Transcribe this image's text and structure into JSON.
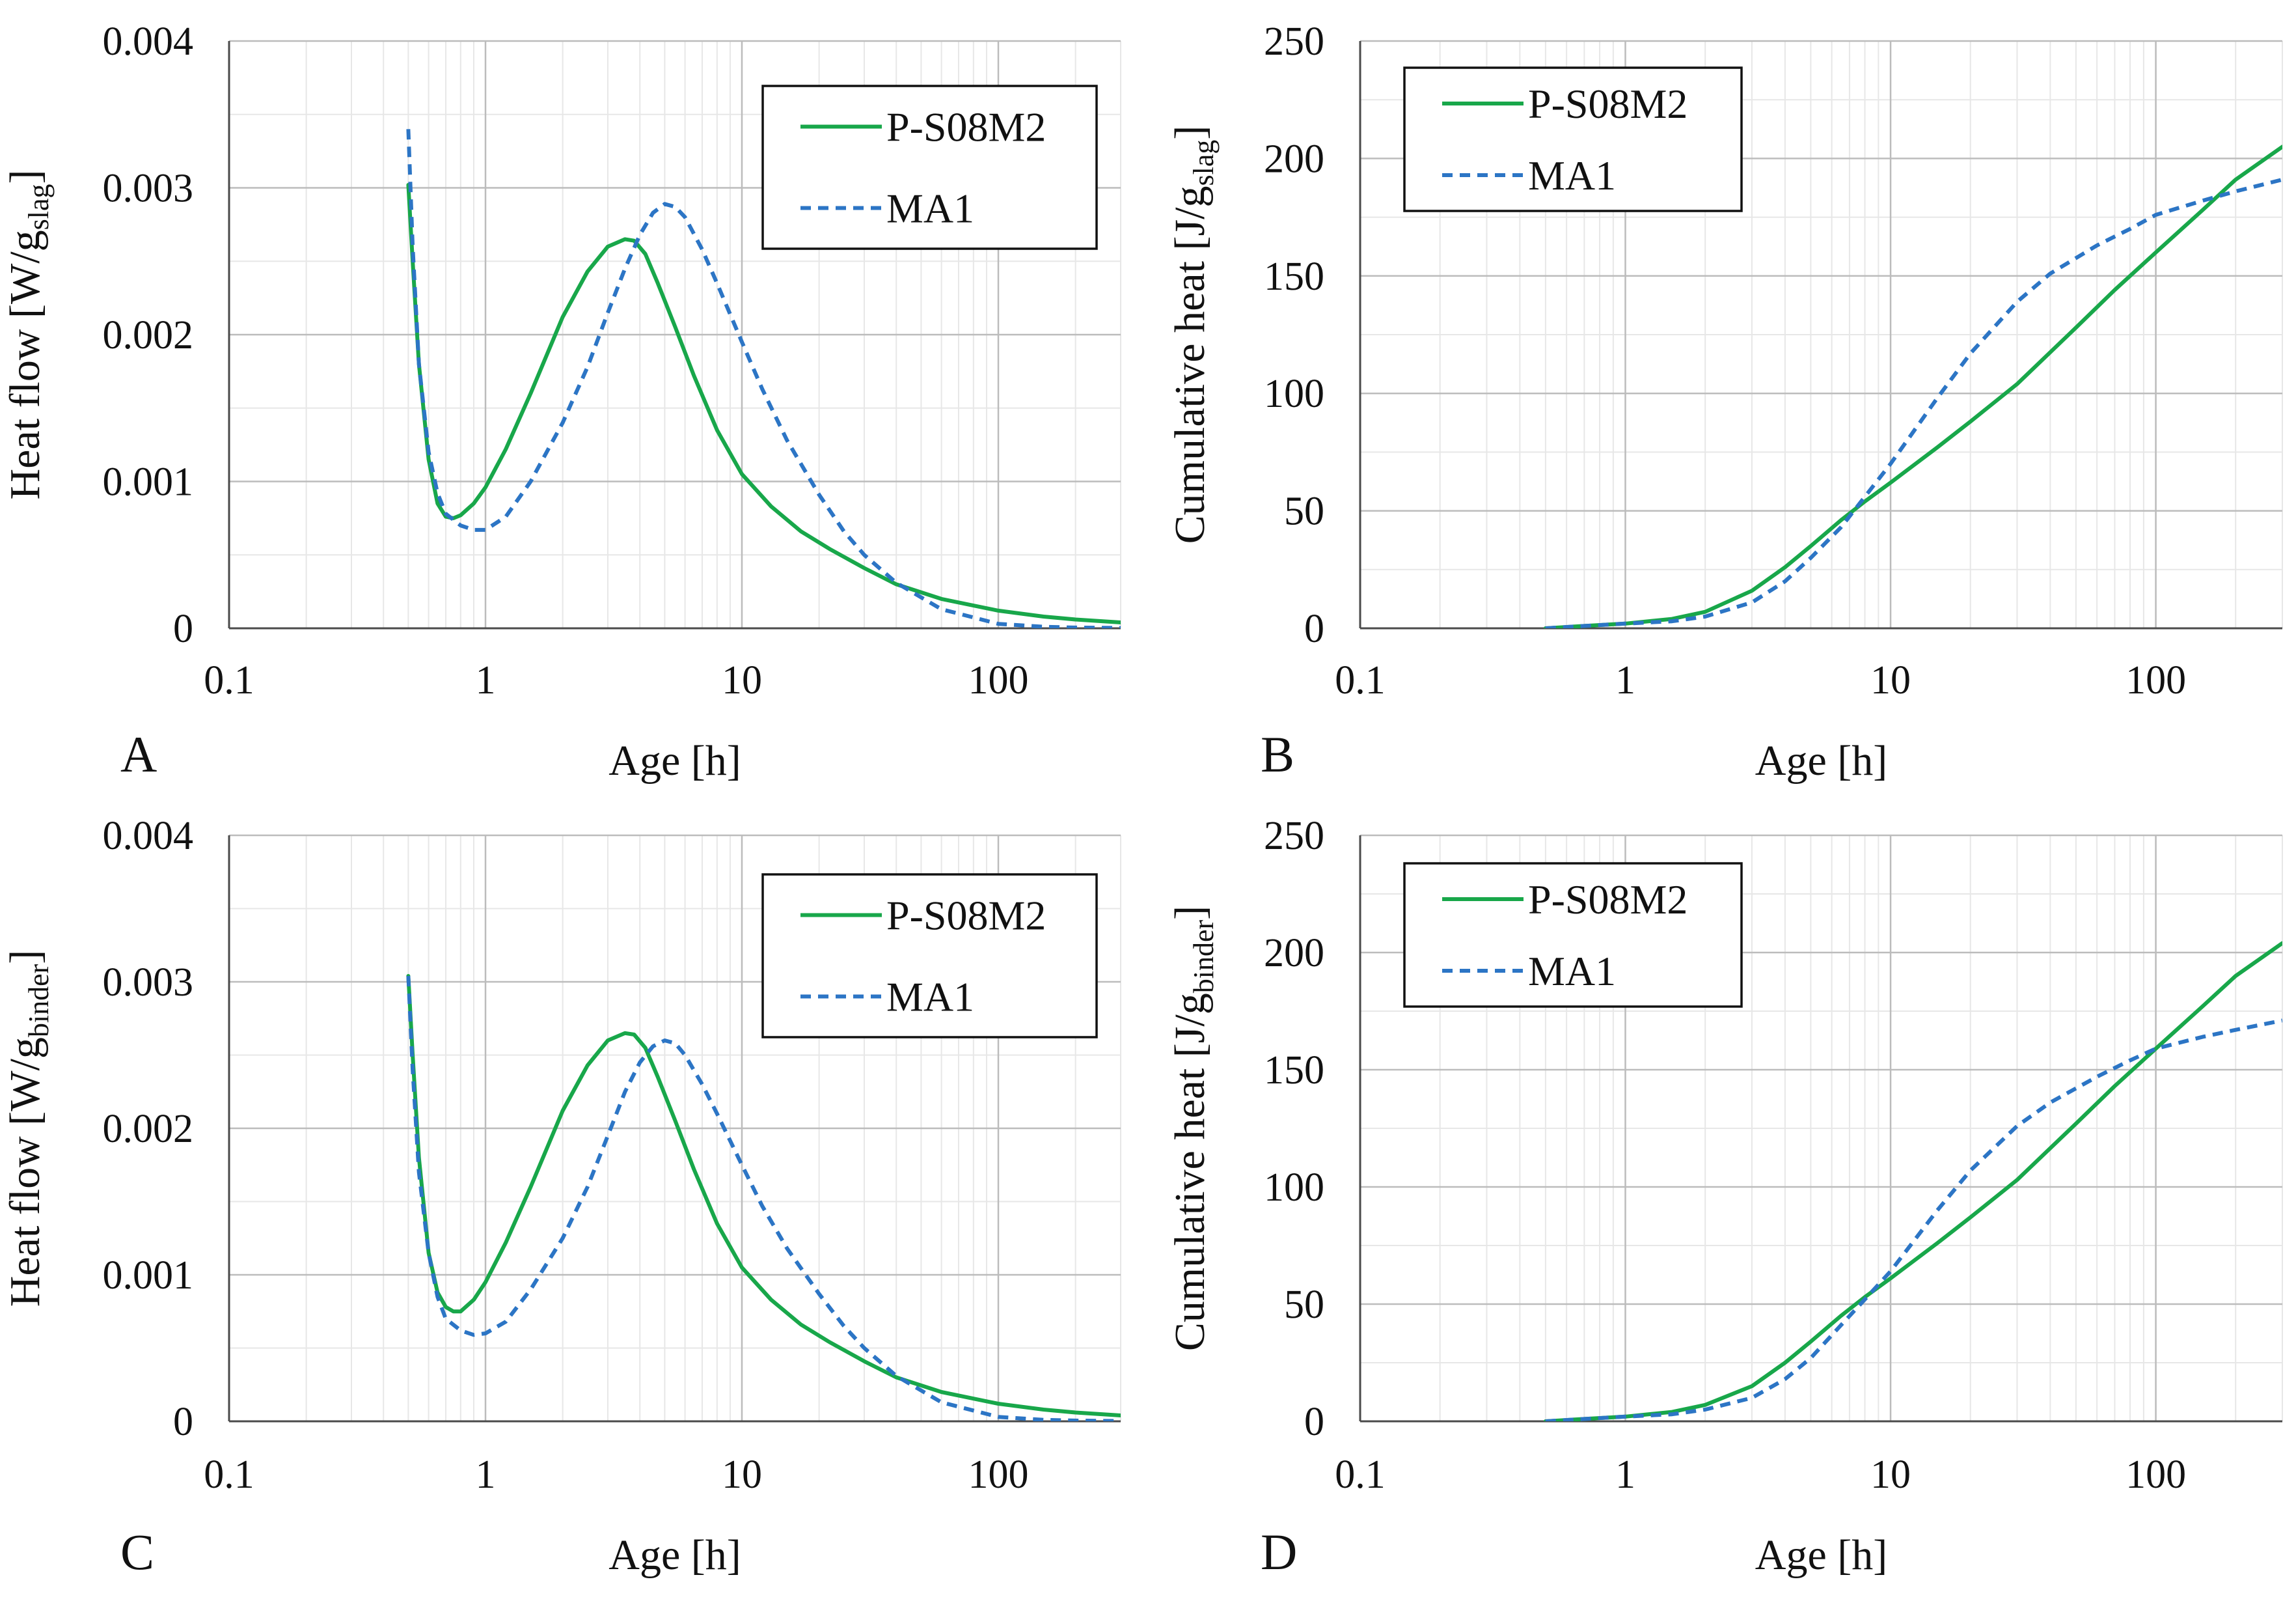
{
  "colors": {
    "series_p": "#18a74a",
    "series_ma": "#2c75c5",
    "axis": "#4a4a4a",
    "grid_major": "#bcbcbc",
    "grid_minor": "#e7e7e7",
    "legend_border": "#111111"
  },
  "chart_data": [
    {
      "panel": "A",
      "type": "line",
      "xscale": "log",
      "xlabel": "Age [h]",
      "ylabel": "Heat flow [W/g",
      "ylabel_sub": "slag",
      "ylabel_end": "]",
      "xlim": [
        0.1,
        300
      ],
      "ylim": [
        0,
        0.004
      ],
      "xticks": [
        0.1,
        1,
        10,
        100
      ],
      "xtick_labels": [
        "0.1",
        "1",
        "10",
        "100"
      ],
      "yticks": [
        0,
        0.001,
        0.002,
        0.003,
        0.004
      ],
      "ytick_labels": [
        "0",
        "0.001",
        "0.002",
        "0.003",
        "0.004"
      ],
      "legend_position": "top-right",
      "series": [
        {
          "name": "P-S08M2",
          "style": "solid",
          "x": [
            0.5,
            0.52,
            0.55,
            0.6,
            0.65,
            0.7,
            0.75,
            0.8,
            0.9,
            1.0,
            1.2,
            1.5,
            2.0,
            2.5,
            3.0,
            3.5,
            3.8,
            4.2,
            4.7,
            5.5,
            6.5,
            8,
            10,
            13,
            17,
            22,
            30,
            40,
            60,
            100,
            150,
            200,
            300
          ],
          "y": [
            0.00302,
            0.0025,
            0.0018,
            0.00115,
            0.00085,
            0.00076,
            0.00075,
            0.00077,
            0.00085,
            0.00096,
            0.00122,
            0.0016,
            0.00212,
            0.00243,
            0.0026,
            0.00265,
            0.00264,
            0.00255,
            0.00235,
            0.00205,
            0.00172,
            0.00135,
            0.00105,
            0.00083,
            0.00066,
            0.00054,
            0.00041,
            0.0003,
            0.0002,
            0.00012,
            8e-05,
            6e-05,
            4e-05
          ]
        },
        {
          "name": "MA1",
          "style": "dashed",
          "x": [
            0.5,
            0.52,
            0.55,
            0.6,
            0.65,
            0.7,
            0.8,
            0.9,
            1.0,
            1.2,
            1.5,
            2.0,
            2.5,
            3.0,
            3.5,
            4.0,
            4.5,
            5.0,
            5.5,
            6.0,
            7,
            8,
            10,
            12,
            15,
            20,
            25,
            30,
            40,
            60,
            100,
            150,
            200,
            300
          ],
          "y": [
            0.0034,
            0.0026,
            0.0018,
            0.0012,
            0.00092,
            0.00078,
            0.0007,
            0.00067,
            0.00067,
            0.00076,
            0.001,
            0.0014,
            0.00178,
            0.00215,
            0.00245,
            0.00268,
            0.00283,
            0.00289,
            0.00287,
            0.0028,
            0.00258,
            0.00235,
            0.00195,
            0.00163,
            0.00128,
            0.00091,
            0.00066,
            0.0005,
            0.00031,
            0.00013,
            3e-05,
            1e-05,
            5e-06,
            2e-06
          ]
        }
      ]
    },
    {
      "panel": "B",
      "type": "line",
      "xscale": "log",
      "xlabel": "Age [h]",
      "ylabel": "Cumulative heat [J/g",
      "ylabel_sub": "slag",
      "ylabel_end": "]",
      "xlim": [
        0.1,
        300
      ],
      "ylim": [
        0,
        250
      ],
      "xticks": [
        0.1,
        1,
        10,
        100
      ],
      "xtick_labels": [
        "0.1",
        "1",
        "10",
        "100"
      ],
      "yticks": [
        0,
        50,
        100,
        150,
        200,
        250
      ],
      "ytick_labels": [
        "0",
        "50",
        "100",
        "150",
        "200",
        "250"
      ],
      "legend_position": "top-left",
      "series": [
        {
          "name": "P-S08M2",
          "style": "solid",
          "x": [
            0.5,
            0.7,
            1,
            1.5,
            2,
            3,
            4,
            5,
            6.5,
            8,
            10,
            15,
            20,
            30,
            50,
            70,
            100,
            150,
            200,
            300
          ],
          "y": [
            0,
            1,
            2,
            4,
            7,
            16,
            26,
            35,
            46,
            54,
            62,
            77,
            88,
            104,
            128,
            144,
            160,
            178,
            191,
            205
          ]
        },
        {
          "name": "MA1",
          "style": "dashed",
          "x": [
            0.5,
            0.7,
            1,
            1.5,
            2,
            3,
            4,
            5,
            6.5,
            8,
            10,
            15,
            20,
            30,
            40,
            60,
            80,
            100,
            150,
            200,
            300
          ],
          "y": [
            0,
            1,
            2,
            3,
            5,
            11,
            20,
            30,
            43,
            56,
            70,
            98,
            117,
            139,
            151,
            163,
            170,
            176,
            182,
            186,
            191
          ]
        }
      ]
    },
    {
      "panel": "C",
      "type": "line",
      "xscale": "log",
      "xlabel": "Age [h]",
      "ylabel": "Heat flow [W/g",
      "ylabel_sub": "binder",
      "ylabel_end": "]",
      "xlim": [
        0.1,
        300
      ],
      "ylim": [
        0,
        0.004
      ],
      "xticks": [
        0.1,
        1,
        10,
        100
      ],
      "xtick_labels": [
        "0.1",
        "1",
        "10",
        "100"
      ],
      "yticks": [
        0,
        0.001,
        0.002,
        0.003,
        0.004
      ],
      "ytick_labels": [
        "0",
        "0.001",
        "0.002",
        "0.003",
        "0.004"
      ],
      "legend_position": "top-right",
      "series": [
        {
          "name": "P-S08M2",
          "style": "solid",
          "x": [
            0.5,
            0.52,
            0.55,
            0.6,
            0.65,
            0.7,
            0.75,
            0.8,
            0.9,
            1.0,
            1.2,
            1.5,
            2.0,
            2.5,
            3.0,
            3.5,
            3.8,
            4.2,
            4.7,
            5.5,
            6.5,
            8,
            10,
            13,
            17,
            22,
            30,
            40,
            60,
            100,
            150,
            200,
            300
          ],
          "y": [
            0.00304,
            0.0025,
            0.0018,
            0.00115,
            0.00088,
            0.00078,
            0.00075,
            0.00075,
            0.00083,
            0.00095,
            0.00122,
            0.0016,
            0.00212,
            0.00243,
            0.0026,
            0.00265,
            0.00264,
            0.00255,
            0.00235,
            0.00205,
            0.00172,
            0.00135,
            0.00105,
            0.00083,
            0.00066,
            0.00054,
            0.00041,
            0.0003,
            0.0002,
            0.00012,
            8e-05,
            6e-05,
            4e-05
          ]
        },
        {
          "name": "MA1",
          "style": "dashed",
          "x": [
            0.5,
            0.52,
            0.55,
            0.6,
            0.65,
            0.7,
            0.8,
            0.9,
            1.0,
            1.2,
            1.5,
            2.0,
            2.5,
            3.0,
            3.5,
            4.0,
            4.5,
            5.0,
            5.5,
            6.0,
            7,
            8,
            10,
            12,
            15,
            20,
            25,
            30,
            40,
            60,
            100,
            150,
            200,
            300
          ],
          "y": [
            0.00304,
            0.0024,
            0.0017,
            0.00115,
            0.00085,
            0.0007,
            0.00062,
            0.00059,
            0.0006,
            0.00068,
            0.0009,
            0.00125,
            0.0016,
            0.00195,
            0.00225,
            0.00245,
            0.00256,
            0.0026,
            0.00258,
            0.0025,
            0.0023,
            0.0021,
            0.00175,
            0.00147,
            0.00118,
            0.00087,
            0.00065,
            0.0005,
            0.00031,
            0.00013,
            3e-05,
            1e-05,
            5e-06,
            2e-06
          ]
        }
      ]
    },
    {
      "panel": "D",
      "type": "line",
      "xscale": "log",
      "xlabel": "Age [h]",
      "ylabel": "Cumulative heat [J/g",
      "ylabel_sub": "binder",
      "ylabel_end": "]",
      "xlim": [
        0.1,
        300
      ],
      "ylim": [
        0,
        250
      ],
      "xticks": [
        0.1,
        1,
        10,
        100
      ],
      "xtick_labels": [
        "0.1",
        "1",
        "10",
        "100"
      ],
      "yticks": [
        0,
        50,
        100,
        150,
        200,
        250
      ],
      "ytick_labels": [
        "0",
        "50",
        "100",
        "150",
        "200",
        "250"
      ],
      "legend_position": "top-left",
      "series": [
        {
          "name": "P-S08M2",
          "style": "solid",
          "x": [
            0.5,
            0.7,
            1,
            1.5,
            2,
            3,
            4,
            5,
            6.5,
            8,
            10,
            15,
            20,
            30,
            50,
            70,
            100,
            150,
            200,
            300
          ],
          "y": [
            0,
            1,
            2,
            4,
            7,
            15,
            25,
            34,
            45,
            53,
            61,
            76,
            87,
            103,
            127,
            143,
            159,
            177,
            190,
            204
          ]
        },
        {
          "name": "MA1",
          "style": "dashed",
          "x": [
            0.5,
            0.7,
            1,
            1.5,
            2,
            3,
            4,
            5,
            6.5,
            8,
            10,
            15,
            20,
            30,
            40,
            60,
            80,
            100,
            150,
            200,
            300
          ],
          "y": [
            0,
            1,
            2,
            3,
            5,
            10,
            18,
            27,
            41,
            52,
            64,
            90,
            107,
            126,
            136,
            147,
            154,
            159,
            164,
            167,
            171
          ]
        }
      ]
    }
  ]
}
